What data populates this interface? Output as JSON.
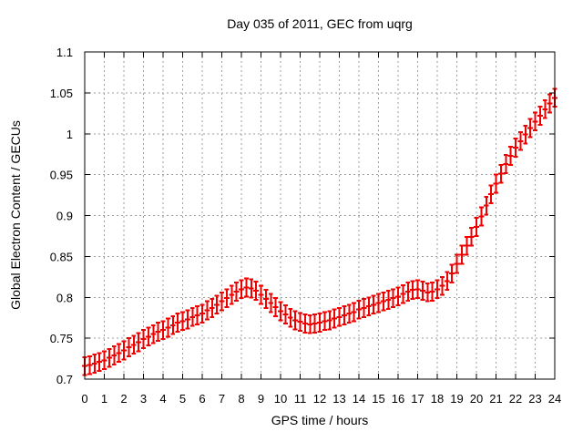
{
  "chart_data": {
    "type": "scatter",
    "style": "yerrorbars",
    "title": "Day 035 of 2011, GEC from uqrg",
    "xlabel": "GPS time / hours",
    "ylabel": "Global Electron Content / GECUs",
    "xlim": [
      0,
      24
    ],
    "ylim": [
      0.7,
      1.1
    ],
    "grid": true,
    "legend": "none",
    "x_ticks": [
      0,
      1,
      2,
      3,
      4,
      5,
      6,
      7,
      8,
      9,
      10,
      11,
      12,
      13,
      14,
      15,
      16,
      17,
      18,
      19,
      20,
      21,
      22,
      23,
      24
    ],
    "y_ticks": [
      0.7,
      0.75,
      0.8,
      0.85,
      0.9,
      0.95,
      1.0,
      1.05,
      1.1
    ],
    "y_tick_labels": [
      "0.7",
      "0.75",
      "0.8",
      "0.85",
      "0.9",
      "0.95",
      "1",
      "1.05",
      "1.1"
    ],
    "yerr": 0.011,
    "x": [
      0,
      0.25,
      0.5,
      0.75,
      1,
      1.25,
      1.5,
      1.75,
      2,
      2.25,
      2.5,
      2.75,
      3,
      3.25,
      3.5,
      3.75,
      4,
      4.25,
      4.5,
      4.75,
      5,
      5.25,
      5.5,
      5.75,
      6,
      6.25,
      6.5,
      6.75,
      7,
      7.25,
      7.5,
      7.75,
      8,
      8.25,
      8.5,
      8.75,
      9,
      9.25,
      9.5,
      9.75,
      10,
      10.25,
      10.5,
      10.75,
      11,
      11.25,
      11.5,
      11.75,
      12,
      12.25,
      12.5,
      12.75,
      13,
      13.25,
      13.5,
      13.75,
      14,
      14.25,
      14.5,
      14.75,
      15,
      15.25,
      15.5,
      15.75,
      16,
      16.25,
      16.5,
      16.75,
      17,
      17.25,
      17.5,
      17.75,
      18,
      18.25,
      18.5,
      18.75,
      19,
      19.25,
      19.5,
      19.75,
      20,
      20.25,
      20.5,
      20.75,
      21,
      21.25,
      21.5,
      21.75,
      22,
      22.25,
      22.5,
      22.75,
      23,
      23.25,
      23.5,
      23.75,
      24
    ],
    "values": [
      0.716,
      0.717,
      0.719,
      0.721,
      0.723,
      0.726,
      0.729,
      0.732,
      0.735,
      0.739,
      0.742,
      0.745,
      0.749,
      0.752,
      0.755,
      0.758,
      0.76,
      0.763,
      0.766,
      0.769,
      0.771,
      0.773,
      0.776,
      0.778,
      0.78,
      0.784,
      0.787,
      0.791,
      0.795,
      0.799,
      0.803,
      0.807,
      0.81,
      0.812,
      0.811,
      0.808,
      0.803,
      0.798,
      0.793,
      0.788,
      0.783,
      0.779,
      0.775,
      0.772,
      0.77,
      0.768,
      0.767,
      0.768,
      0.769,
      0.771,
      0.772,
      0.774,
      0.776,
      0.778,
      0.78,
      0.782,
      0.785,
      0.787,
      0.789,
      0.791,
      0.793,
      0.795,
      0.797,
      0.799,
      0.801,
      0.804,
      0.807,
      0.809,
      0.81,
      0.808,
      0.806,
      0.807,
      0.81,
      0.814,
      0.82,
      0.829,
      0.841,
      0.852,
      0.863,
      0.874,
      0.886,
      0.899,
      0.912,
      0.926,
      0.939,
      0.951,
      0.963,
      0.973,
      0.983,
      0.991,
      0.999,
      1.007,
      1.015,
      1.022,
      1.03,
      1.037,
      1.044
    ],
    "colors": {
      "series": "#ee0000",
      "grid": "#9e9e9e",
      "axis": "#000000",
      "background": "#ffffff"
    }
  }
}
